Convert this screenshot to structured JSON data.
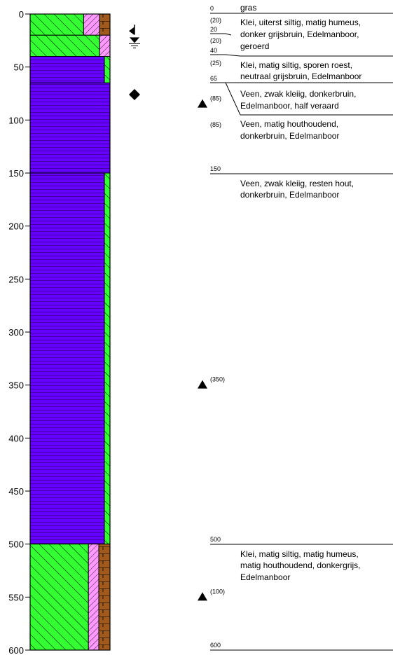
{
  "depth_axis": {
    "ticks": [
      {
        "value": 0,
        "label": "0"
      },
      {
        "value": 50,
        "label": "50"
      },
      {
        "value": 100,
        "label": "100"
      },
      {
        "value": 150,
        "label": "150"
      },
      {
        "value": 200,
        "label": "200"
      },
      {
        "value": 250,
        "label": "250"
      },
      {
        "value": 300,
        "label": "300"
      },
      {
        "value": 350,
        "label": "350"
      },
      {
        "value": 400,
        "label": "400"
      },
      {
        "value": 450,
        "label": "450"
      },
      {
        "value": 500,
        "label": "500"
      },
      {
        "value": 550,
        "label": "550"
      },
      {
        "value": 600,
        "label": "600"
      }
    ]
  },
  "layers": [
    {
      "top": 0,
      "bottom": 20,
      "description": "Klei, uiterst siltig, matig humeus, donker grijsbruin, Edelmanboor, geroerd",
      "columns": [
        {
          "pattern": "clay",
          "share": 0.67
        },
        {
          "pattern": "silt",
          "share": 0.2
        },
        {
          "pattern": "humus",
          "share": 0.13
        }
      ]
    },
    {
      "top": 20,
      "bottom": 40,
      "description": "Klei, matig siltig, sporen roest, neutraal grijsbruin, Edelmanboor",
      "columns": [
        {
          "pattern": "clay",
          "share": 0.87
        },
        {
          "pattern": "silt",
          "share": 0.13
        }
      ]
    },
    {
      "top": 40,
      "bottom": 65,
      "description": "Veen, zwak kleiig, donkerbruin, Edelmanboor, half veraard",
      "columns": [
        {
          "pattern": "peat",
          "share": 0.93
        },
        {
          "pattern": "clay",
          "share": 0.07
        }
      ]
    },
    {
      "top": 65,
      "bottom": 150,
      "description": "Veen, matig houthoudend, donkerbruin, Edelmanboor",
      "columns": [
        {
          "pattern": "peat",
          "share": 1.0
        }
      ]
    },
    {
      "top": 150,
      "bottom": 500,
      "description": "Veen, zwak kleiig, resten hout, donkerbruin, Edelmanboor",
      "columns": [
        {
          "pattern": "peat",
          "share": 0.93
        },
        {
          "pattern": "clay",
          "share": 0.07
        }
      ]
    },
    {
      "top": 500,
      "bottom": 600,
      "description": "Klei, matig siltig, matig humeus, matig houthoudend, donkergrijs, Edelmanboor",
      "columns": [
        {
          "pattern": "clay",
          "share": 0.73
        },
        {
          "pattern": "silt",
          "share": 0.13
        },
        {
          "pattern": "humus",
          "share": 0.14
        }
      ]
    }
  ],
  "pattern_colors": {
    "clay": "#33ff33",
    "silt": "#ff99ff",
    "humus": "#a05a1e",
    "peat": "#6600ff"
  },
  "description_column": {
    "top_label": {
      "depth": "0",
      "text": "gras"
    },
    "rows": [
      {
        "depth_top": "0",
        "thickness": "(20)",
        "depth_bottom": "20",
        "lines": [
          "Klei, uiterst siltig, matig humeus,",
          "donker grijsbruin, Edelmanboor,"
        ]
      },
      {
        "thickness": "(20)",
        "depth_bottom": "40",
        "lines": [
          "geroerd"
        ]
      },
      {
        "thickness": "(25)",
        "depth_bottom": "65",
        "lines": [
          "Klei, matig siltig, sporen roest,",
          "neutraal grijsbruin, Edelmanboor"
        ]
      },
      {
        "thickness": "",
        "lines": [
          "Veen, zwak kleiig, donkerbruin,",
          "Edelmanboor, half veraard"
        ]
      },
      {
        "thickness": "(85)",
        "lines": [
          "Veen, matig houthoudend,",
          "donkerbruin, Edelmanboor"
        ]
      },
      {
        "depth_bottom": "150",
        "lines": [
          "Veen, zwak kleiig, resten hout,",
          "donkerbruin, Edelmanboor"
        ]
      },
      {
        "depth_bottom": "500",
        "lines": [
          "Klei, matig siltig, matig humeus,",
          "matig houthoudend, donkergrijs,",
          "Edelmanboor"
        ]
      },
      {
        "depth_bottom": "600",
        "lines": []
      }
    ]
  },
  "samples": [
    {
      "depth": 85,
      "label": "(85)"
    },
    {
      "depth": 350,
      "label": "(350)"
    },
    {
      "depth": 550,
      "label": "(100)"
    }
  ],
  "water_level_symbols": [
    {
      "type": "arrow-left",
      "depth": 16
    },
    {
      "type": "groundwater",
      "depth": 26
    },
    {
      "type": "diamond",
      "depth": 76
    }
  ]
}
